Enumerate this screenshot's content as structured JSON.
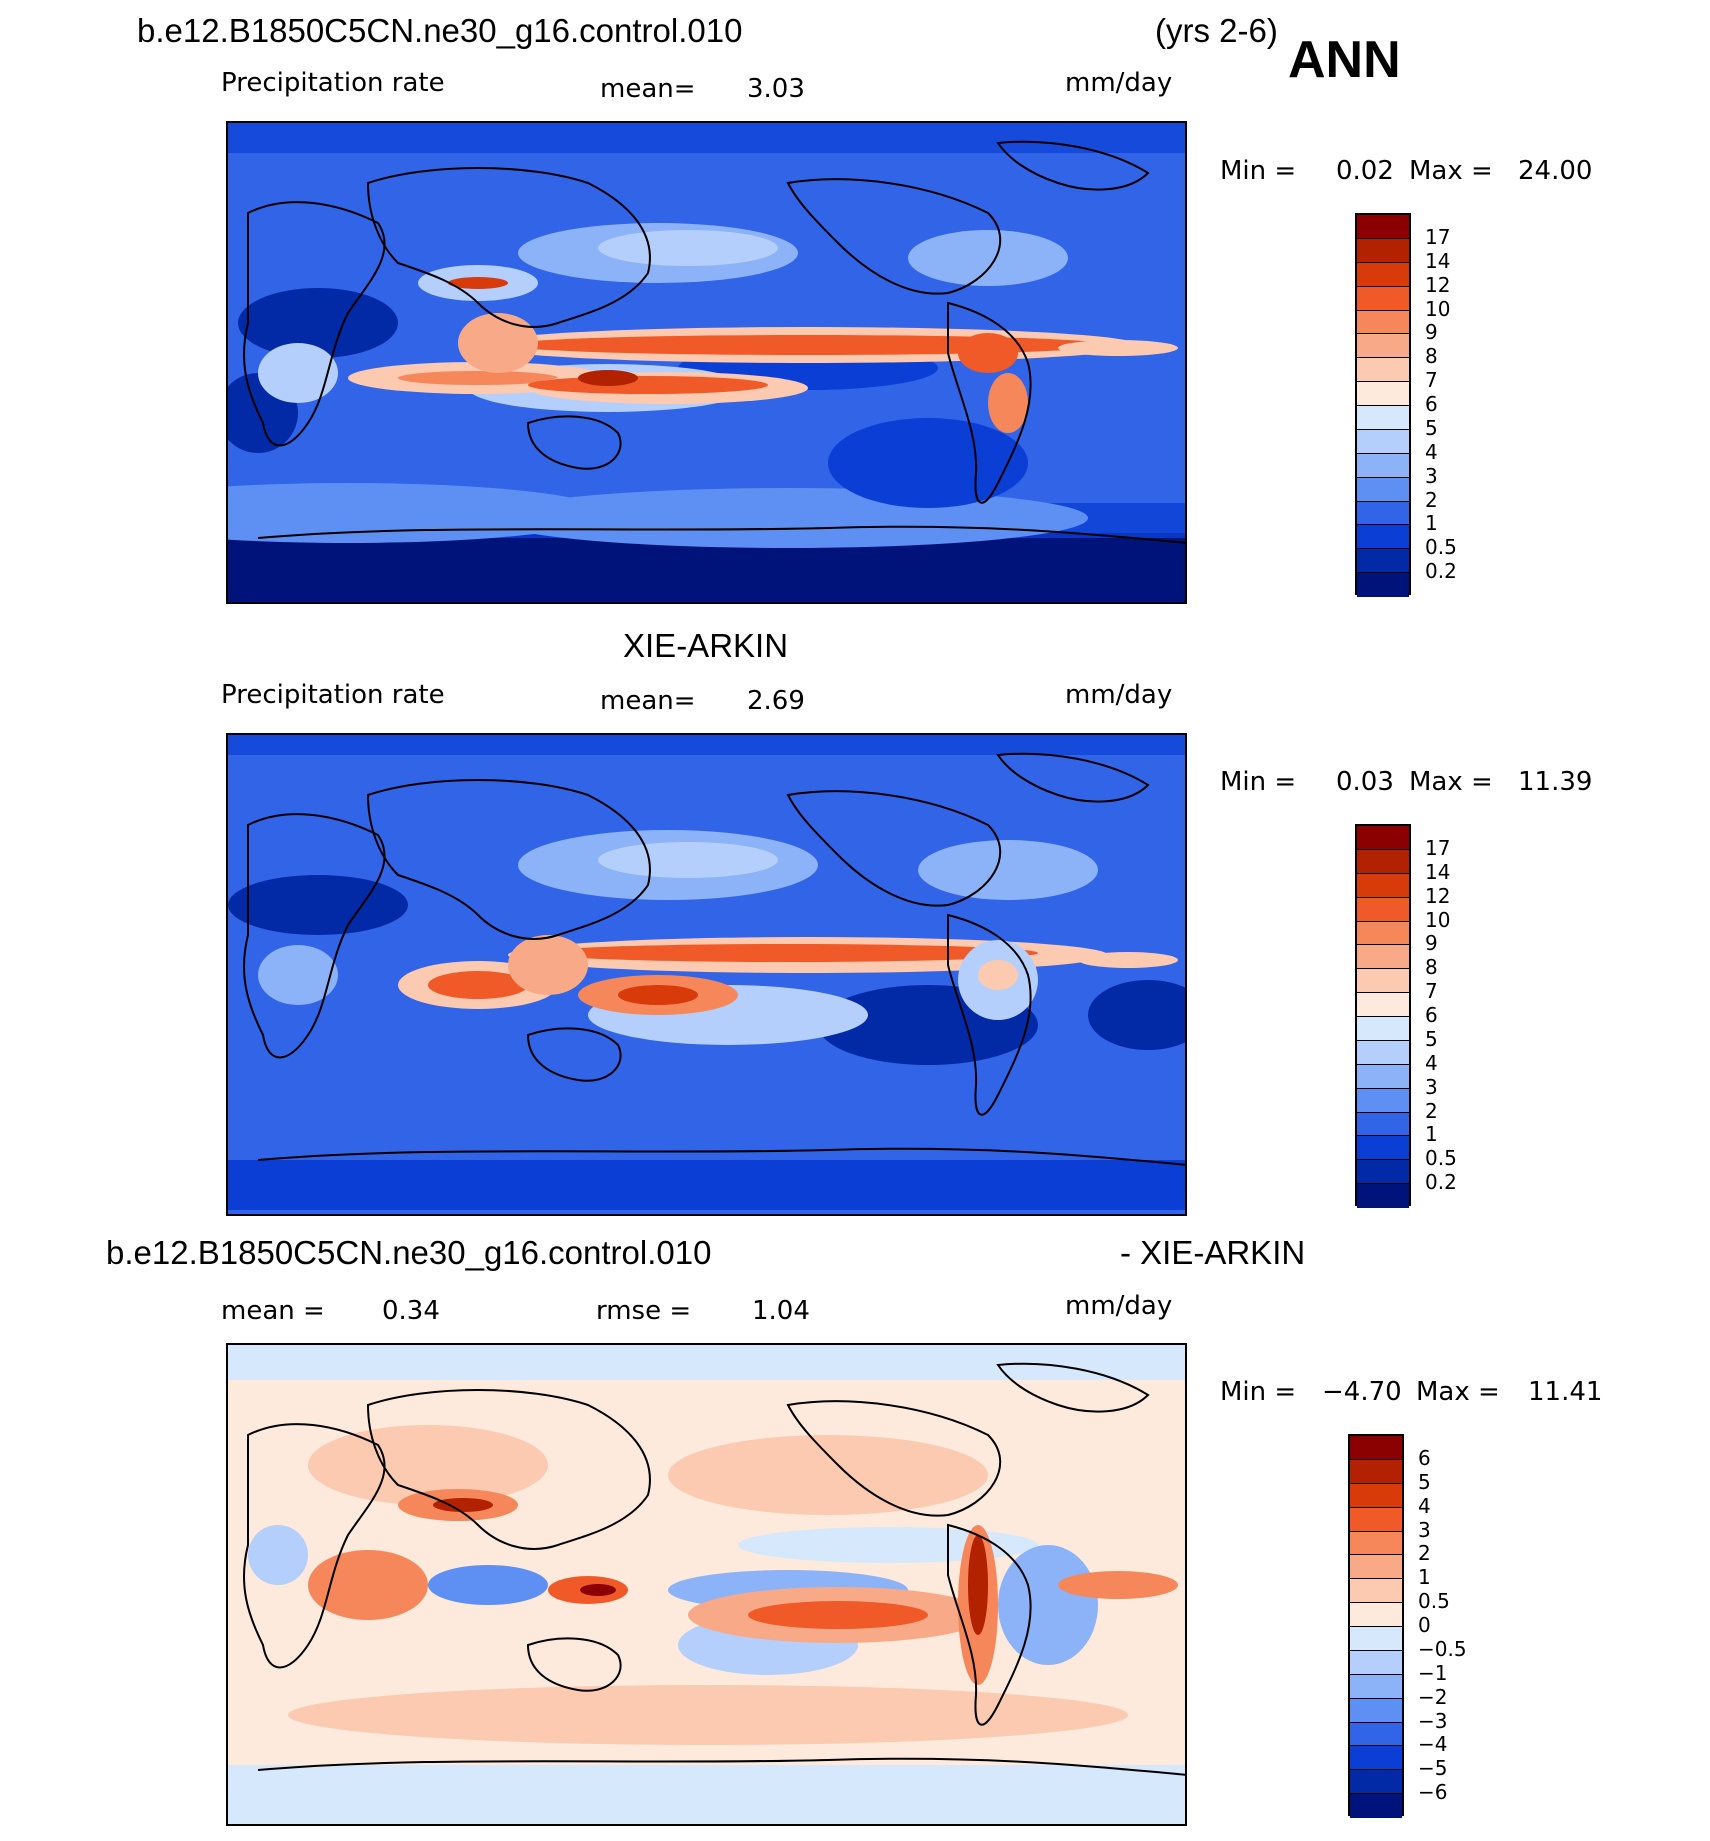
{
  "header": {
    "case_name": "b.e12.B1850C5CN.ne30_g16.control.010",
    "years": "(yrs 2-6)",
    "season": "ANN"
  },
  "panels": [
    {
      "id": "model",
      "variable_label": "Precipitation rate",
      "mean_label": "mean=",
      "mean_value": "3.03",
      "units": "mm/day",
      "min_label": "Min =",
      "min_value": "0.02",
      "max_label": "Max =",
      "max_value": "24.00",
      "colorbar": {
        "labels": [
          "17",
          "14",
          "12",
          "10",
          "9",
          "8",
          "7",
          "6",
          "5",
          "4",
          "3",
          "2",
          "1",
          "0.5",
          "0.2"
        ],
        "colors": [
          "#8b0000",
          "#b22200",
          "#d83a0a",
          "#f05a28",
          "#f6875a",
          "#f8aa88",
          "#fccab0",
          "#fdeadc",
          "#d6e8fc",
          "#b4cffb",
          "#8cb2f8",
          "#5e8ff3",
          "#3164e6",
          "#0a3ed4",
          "#022aa6",
          "#00137a"
        ]
      }
    },
    {
      "id": "obs",
      "title": "XIE-ARKIN",
      "variable_label": "Precipitation rate",
      "mean_label": "mean=",
      "mean_value": "2.69",
      "units": "mm/day",
      "min_label": "Min =",
      "min_value": "0.03",
      "max_label": "Max =",
      "max_value": "11.39",
      "colorbar": {
        "labels": [
          "17",
          "14",
          "12",
          "10",
          "9",
          "8",
          "7",
          "6",
          "5",
          "4",
          "3",
          "2",
          "1",
          "0.5",
          "0.2"
        ],
        "colors": [
          "#8b0000",
          "#b22200",
          "#d83a0a",
          "#f05a28",
          "#f6875a",
          "#f8aa88",
          "#fccab0",
          "#fdeadc",
          "#d6e8fc",
          "#b4cffb",
          "#8cb2f8",
          "#5e8ff3",
          "#3164e6",
          "#0a3ed4",
          "#022aa6",
          "#00137a"
        ]
      }
    },
    {
      "id": "diff",
      "title_left": "b.e12.B1850C5CN.ne30_g16.control.010",
      "title_right": "- XIE-ARKIN",
      "mean_label": "mean =",
      "mean_value": "0.34",
      "rmse_label": "rmse =",
      "rmse_value": "1.04",
      "units": "mm/day",
      "min_label": "Min =",
      "min_value": "−4.70",
      "max_label": "Max =",
      "max_value": "11.41",
      "colorbar": {
        "labels": [
          "6",
          "5",
          "4",
          "3",
          "2",
          "1",
          "0.5",
          "0",
          "−0.5",
          "−1",
          "−2",
          "−3",
          "−4",
          "−5",
          "−6"
        ],
        "colors": [
          "#8b0000",
          "#b22200",
          "#d83a0a",
          "#f05a28",
          "#f6875a",
          "#f8aa88",
          "#fccab0",
          "#fdeadc",
          "#d6e8fc",
          "#b4cffb",
          "#8cb2f8",
          "#5e8ff3",
          "#3164e6",
          "#0a3ed4",
          "#022aa6",
          "#00137a"
        ]
      }
    }
  ]
}
